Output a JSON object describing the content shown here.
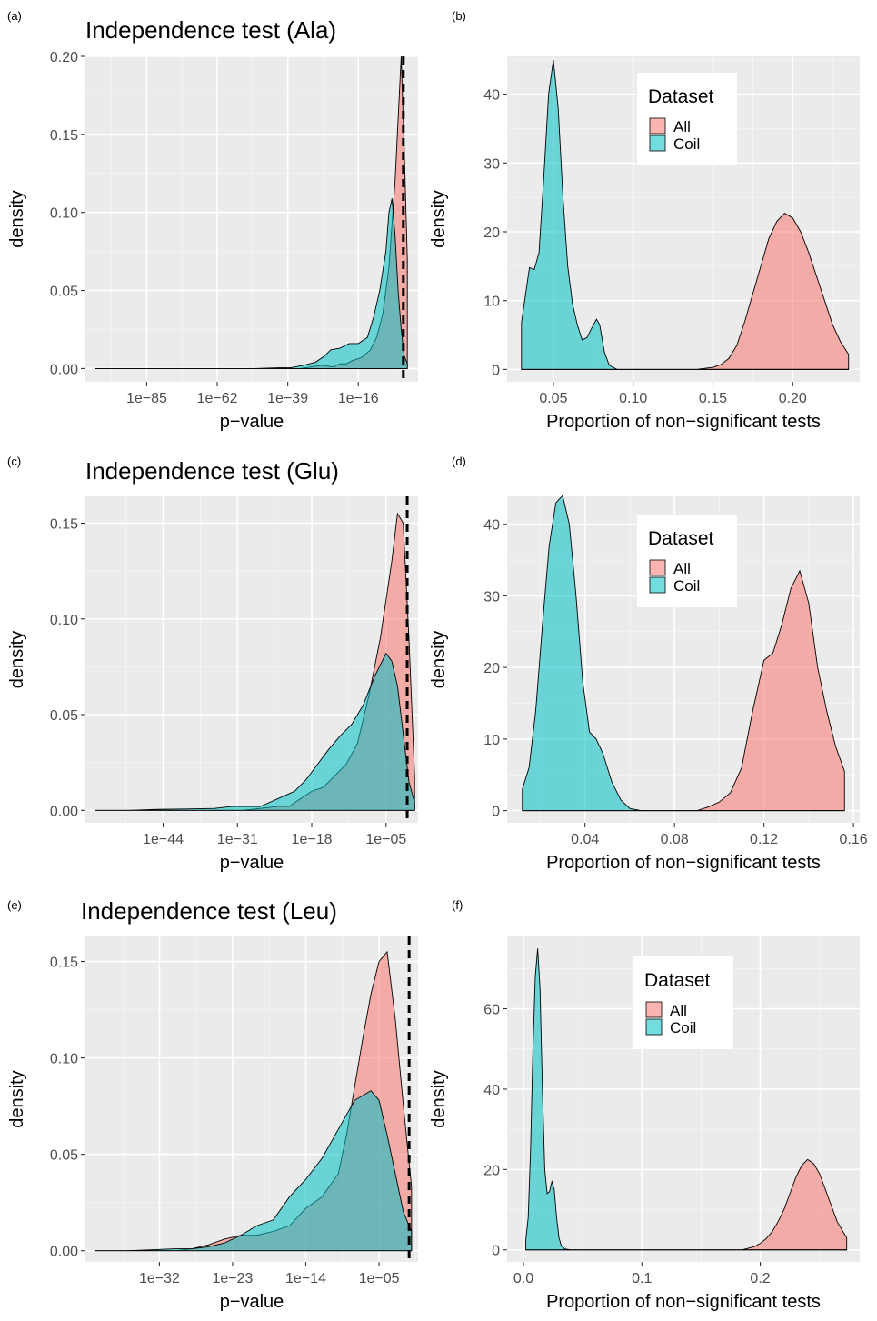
{
  "colors": {
    "All": "#F8766D",
    "Coil": "#00BFC4"
  },
  "legend": {
    "title": "Dataset",
    "labels": [
      "All",
      "Coil"
    ]
  },
  "chart_data": [
    {
      "tag": "(a)",
      "type": "area",
      "title": "Independence test (Ala)",
      "xlabel": "p−value",
      "ylabel": "density",
      "x_scale": "log10",
      "xticks": [
        -85,
        -62,
        -39,
        -16
      ],
      "xticklabels": [
        "1e−85",
        "1e−62",
        "1e−39",
        "1e−16"
      ],
      "xlim": [
        -105,
        3.5
      ],
      "yticks": [
        0,
        0.05,
        0.1,
        0.15,
        0.2
      ],
      "yticklabels": [
        "0.00",
        "0.05",
        "0.10",
        "0.15",
        "0.20"
      ],
      "ylim": [
        -0.0085,
        0.2
      ],
      "reference_line_log10_p": [
        -1.3
      ],
      "series": [
        {
          "name": "All",
          "x": [
            -102,
            -35,
            -28,
            -24,
            -22,
            -20,
            -18,
            -15,
            -12,
            -10,
            -8,
            -6,
            -4,
            -3,
            -2,
            -1,
            0
          ],
          "y": [
            0,
            0,
            0.002,
            0.001,
            0.003,
            0.003,
            0.005,
            0.007,
            0.012,
            0.02,
            0.035,
            0.065,
            0.12,
            0.16,
            0.2,
            0.14,
            0.07
          ]
        },
        {
          "name": "Coil",
          "x": [
            -102,
            -70,
            -50,
            -42,
            -38,
            -34,
            -30,
            -27,
            -25,
            -22,
            -19,
            -16,
            -13,
            -11,
            -9,
            -7,
            -6,
            -5,
            -4,
            -3,
            -2,
            -1,
            0
          ],
          "y": [
            0,
            0,
            0,
            0.0005,
            0.0005,
            0.002,
            0.004,
            0.008,
            0.012,
            0.013,
            0.016,
            0.016,
            0.02,
            0.033,
            0.05,
            0.075,
            0.1,
            0.109,
            0.085,
            0.05,
            0.025,
            0.008,
            0.003
          ]
        }
      ]
    },
    {
      "tag": "(b)",
      "type": "area",
      "title": "",
      "xlabel": "Proportion of non−significant tests",
      "ylabel": "density",
      "xticks": [
        0.05,
        0.1,
        0.15,
        0.2
      ],
      "xticklabels": [
        "0.05",
        "0.10",
        "0.15",
        "0.20"
      ],
      "xlim": [
        0.021,
        0.242
      ],
      "yticks": [
        0,
        10,
        20,
        30,
        40
      ],
      "yticklabels": [
        "0",
        "10",
        "20",
        "30",
        "40"
      ],
      "ylim": [
        -1.8,
        45.5
      ],
      "series": [
        {
          "name": "All",
          "x": [
            0.03,
            0.14,
            0.15,
            0.155,
            0.16,
            0.165,
            0.17,
            0.175,
            0.18,
            0.185,
            0.19,
            0.195,
            0.2,
            0.205,
            0.21,
            0.215,
            0.22,
            0.225,
            0.23,
            0.235
          ],
          "y": [
            0,
            0,
            0.3,
            0.7,
            1.6,
            3.5,
            7,
            11,
            15,
            19,
            21.5,
            22.7,
            22,
            20,
            17,
            13.5,
            10,
            6.5,
            4,
            2.2
          ]
        },
        {
          "name": "Coil",
          "x": [
            0.03,
            0.032,
            0.035,
            0.038,
            0.041,
            0.044,
            0.047,
            0.05,
            0.053,
            0.056,
            0.059,
            0.062,
            0.065,
            0.068,
            0.071,
            0.074,
            0.077,
            0.079,
            0.082,
            0.085,
            0.09,
            0.1,
            0.235
          ],
          "y": [
            6.8,
            10,
            14.8,
            14.5,
            17,
            28,
            40,
            45,
            38,
            25,
            15,
            9.5,
            6.5,
            4.3,
            4.6,
            6,
            7.3,
            6.5,
            2.5,
            0.6,
            0,
            0,
            0
          ]
        }
      ]
    },
    {
      "tag": "(c)",
      "type": "area",
      "title": "Independence test (Glu)",
      "xlabel": "p−value",
      "ylabel": "density",
      "x_scale": "log10",
      "xticks": [
        -44,
        -31,
        -18,
        -5
      ],
      "xticklabels": [
        "1e−44",
        "1e−31",
        "1e−18",
        "1e−05"
      ],
      "xlim": [
        -57.6,
        0.6
      ],
      "yticks": [
        0,
        0.05,
        0.1,
        0.15
      ],
      "yticklabels": [
        "0.00",
        "0.05",
        "0.10",
        "0.15"
      ],
      "ylim": [
        -0.0065,
        0.164
      ],
      "reference_line_log10_p": [
        -1.3
      ],
      "series": [
        {
          "name": "All",
          "x": [
            -56,
            -30,
            -27,
            -24,
            -22,
            -20,
            -18,
            -16,
            -14,
            -12,
            -10,
            -8,
            -6,
            -5,
            -4,
            -3,
            -2,
            -1,
            0
          ],
          "y": [
            0,
            0,
            0.001,
            0.002,
            0.002,
            0.006,
            0.01,
            0.012,
            0.018,
            0.024,
            0.035,
            0.06,
            0.09,
            0.11,
            0.13,
            0.155,
            0.15,
            0.09,
            0.018
          ]
        },
        {
          "name": "Coil",
          "x": [
            -56,
            -50,
            -45,
            -40,
            -35,
            -32,
            -30,
            -27,
            -24,
            -21,
            -19,
            -17,
            -15,
            -13,
            -11,
            -9,
            -7,
            -5,
            -4,
            -3,
            -2,
            -1,
            0
          ],
          "y": [
            0,
            0,
            0.0005,
            0.0007,
            0.001,
            0.002,
            0.002,
            0.002,
            0.006,
            0.01,
            0.016,
            0.024,
            0.032,
            0.039,
            0.045,
            0.055,
            0.07,
            0.082,
            0.078,
            0.065,
            0.04,
            0.015,
            0.004
          ]
        }
      ]
    },
    {
      "tag": "(d)",
      "type": "area",
      "title": "",
      "xlabel": "Proportion of non−significant tests",
      "ylabel": "density",
      "xticks": [
        0.04,
        0.08,
        0.12,
        0.16
      ],
      "xticklabels": [
        "0.04",
        "0.08",
        "0.12",
        "0.16"
      ],
      "xlim": [
        0.0052,
        0.1628
      ],
      "yticks": [
        0,
        10,
        20,
        30,
        40
      ],
      "yticklabels": [
        "0",
        "10",
        "20",
        "30",
        "40"
      ],
      "ylim": [
        -1.7,
        43.9
      ],
      "series": [
        {
          "name": "All",
          "x": [
            0.012,
            0.09,
            0.095,
            0.1,
            0.105,
            0.11,
            0.115,
            0.12,
            0.124,
            0.128,
            0.132,
            0.136,
            0.14,
            0.144,
            0.148,
            0.152,
            0.156
          ],
          "y": [
            0,
            0,
            0.5,
            1.2,
            2.5,
            6,
            14,
            21,
            22,
            26,
            31,
            33.5,
            29,
            20,
            14,
            9,
            5.5
          ]
        },
        {
          "name": "Coil",
          "x": [
            0.012,
            0.015,
            0.018,
            0.021,
            0.024,
            0.027,
            0.03,
            0.033,
            0.036,
            0.039,
            0.042,
            0.045,
            0.048,
            0.052,
            0.056,
            0.06,
            0.065,
            0.156
          ],
          "y": [
            3,
            6,
            14,
            26,
            37,
            43,
            44,
            40,
            30,
            18,
            11,
            10,
            8,
            4,
            1.5,
            0.3,
            0,
            0
          ]
        }
      ]
    },
    {
      "tag": "(e)",
      "type": "area",
      "title": "Independence test (Leu)",
      "xlabel": "p−value",
      "ylabel": "density",
      "x_scale": "log10",
      "xticks": [
        -32,
        -23,
        -14,
        -5
      ],
      "xticklabels": [
        "1e−32",
        "1e−23",
        "1e−14",
        "1e−05"
      ],
      "xlim": [
        -41.1,
        -0.2
      ],
      "yticks": [
        0,
        0.05,
        0.1,
        0.15
      ],
      "yticklabels": [
        "0.00",
        "0.05",
        "0.10",
        "0.15"
      ],
      "ylim": [
        -0.0058,
        0.163
      ],
      "reference_line_log10_p": [
        -1.3
      ],
      "series": [
        {
          "name": "All",
          "x": [
            -40,
            -30,
            -28,
            -26,
            -24,
            -22,
            -20,
            -18,
            -16,
            -14,
            -12,
            -10,
            -9,
            -8,
            -7,
            -6,
            -5,
            -4,
            -3,
            -2,
            -1
          ],
          "y": [
            0,
            0,
            0.001,
            0.003,
            0.006,
            0.008,
            0.008,
            0.01,
            0.013,
            0.022,
            0.028,
            0.04,
            0.06,
            0.085,
            0.11,
            0.133,
            0.15,
            0.155,
            0.12,
            0.075,
            0.033
          ]
        },
        {
          "name": "Coil",
          "x": [
            -40,
            -36,
            -33,
            -30,
            -28,
            -26,
            -24,
            -22,
            -20,
            -18,
            -16,
            -14,
            -12,
            -10,
            -8,
            -6,
            -5,
            -4,
            -3,
            -2,
            -1
          ],
          "y": [
            0,
            0,
            0.0005,
            0.001,
            0.001,
            0.002,
            0.004,
            0.008,
            0.013,
            0.016,
            0.028,
            0.037,
            0.048,
            0.063,
            0.078,
            0.083,
            0.078,
            0.06,
            0.04,
            0.02,
            0.01
          ]
        }
      ]
    },
    {
      "tag": "(f)",
      "type": "area",
      "title": "",
      "xlabel": "Proportion of non−significant tests",
      "ylabel": "density",
      "xticks": [
        0.0,
        0.1,
        0.2
      ],
      "xticklabels": [
        "0.0",
        "0.1",
        "0.2"
      ],
      "xlim": [
        -0.0138,
        0.284
      ],
      "yticks": [
        0,
        20,
        40,
        60
      ],
      "yticklabels": [
        "0",
        "20",
        "40",
        "60"
      ],
      "ylim": [
        -3,
        78
      ],
      "series": [
        {
          "name": "All",
          "x": [
            0.002,
            0.185,
            0.19,
            0.195,
            0.2,
            0.205,
            0.21,
            0.215,
            0.22,
            0.225,
            0.23,
            0.235,
            0.24,
            0.245,
            0.25,
            0.255,
            0.26,
            0.265,
            0.27,
            0.273
          ],
          "y": [
            0,
            0,
            0.4,
            0.8,
            1.6,
            2.8,
            4.5,
            7,
            10,
            14,
            18,
            21,
            22.5,
            21.5,
            19,
            15,
            11,
            7,
            4.5,
            3
          ]
        },
        {
          "name": "Coil",
          "x": [
            0.002,
            0.004,
            0.006,
            0.008,
            0.01,
            0.012,
            0.014,
            0.016,
            0.018,
            0.02,
            0.022,
            0.024,
            0.026,
            0.028,
            0.03,
            0.032,
            0.035,
            0.04,
            0.273
          ],
          "y": [
            2.5,
            8,
            25,
            50,
            68,
            75,
            65,
            40,
            20,
            14,
            14.5,
            17,
            15,
            8,
            3,
            1,
            0.2,
            0,
            0
          ]
        }
      ]
    }
  ]
}
